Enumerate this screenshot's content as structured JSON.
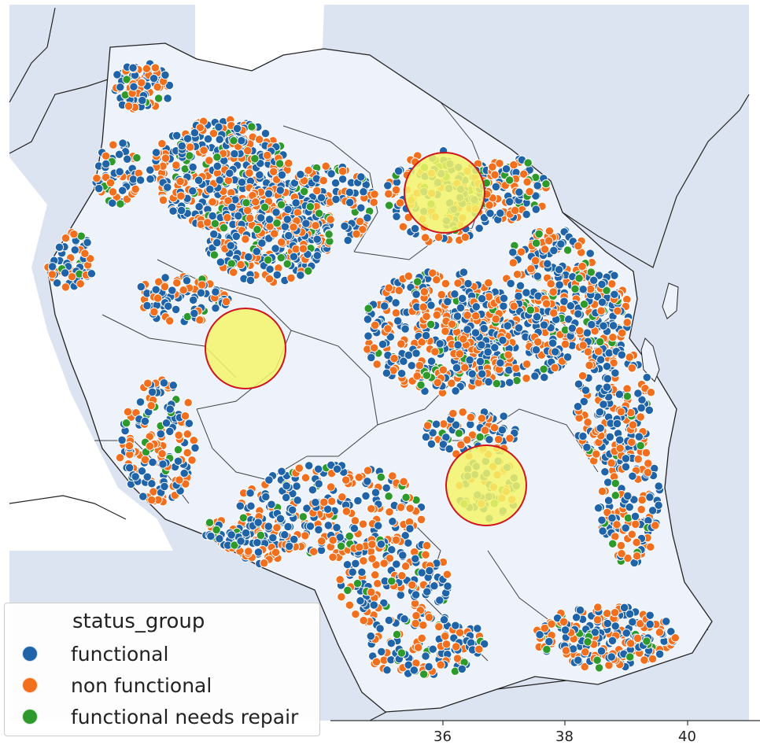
{
  "colors": {
    "ocean": "#dde4f1",
    "land": "#eef3fb",
    "border": "#222222",
    "functional": "#1f63a8",
    "non_functional": "#f26f1d",
    "functional_needs_repair": "#2e9a2c",
    "highlight_fill": "#f5f56a",
    "highlight_stroke": "#d0141e"
  },
  "legend": {
    "title": "status_group",
    "items": [
      {
        "label": "functional",
        "color": "#1f63a8"
      },
      {
        "label": "non functional",
        "color": "#f26f1d"
      },
      {
        "label": "functional needs repair",
        "color": "#2e9a2c"
      }
    ]
  },
  "x_axis": {
    "ticks": [
      "36",
      "38",
      "40"
    ]
  },
  "highlights": [
    {
      "name": "highlight-circle-northeast"
    },
    {
      "name": "highlight-circle-west"
    },
    {
      "name": "highlight-circle-southeast"
    }
  ]
}
